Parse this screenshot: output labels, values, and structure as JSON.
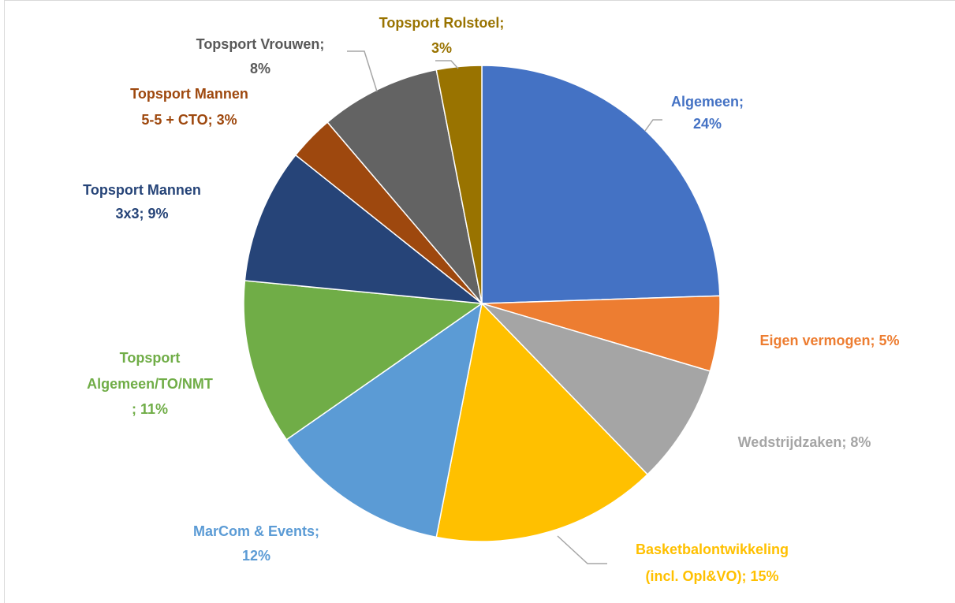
{
  "chart_data": {
    "type": "pie",
    "values": [
      24,
      5,
      8,
      15,
      12,
      11,
      9,
      3,
      8,
      3
    ],
    "value_labels": [
      [
        "Algemeen;",
        "24%"
      ],
      [
        "Eigen vermogen; 5%"
      ],
      [
        "Wedstrijdzaken; 8%"
      ],
      [
        "Basketbalontwikkeling",
        "(incl. Opl&VO); 15%"
      ],
      [
        "MarCom & Events;",
        "12%"
      ],
      [
        "Topsport",
        "Algemeen/TO/NMT",
        "; 11%"
      ],
      [
        "Topsport Mannen",
        "3x3; 9%"
      ],
      [
        "Topsport Mannen",
        "5-5 + CTO; 3%"
      ],
      [
        "Topsport Vrouwen;",
        "8%"
      ],
      [
        "Topsport Rolstoel;",
        "3%"
      ]
    ],
    "colors": [
      "#4472c4",
      "#ed7d31",
      "#a5a5a5",
      "#ffc000",
      "#5b9bd5",
      "#70ad47",
      "#264478",
      "#9e480e",
      "#636363",
      "#997300"
    ]
  }
}
